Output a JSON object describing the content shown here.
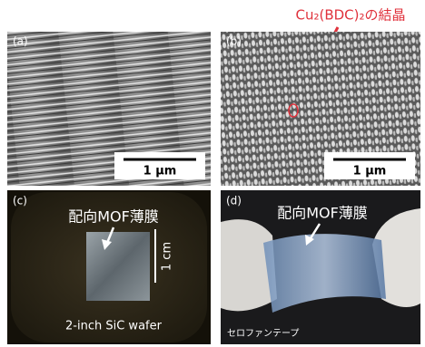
{
  "header": {
    "title": "Cu₂(BDC)₂の結晶"
  },
  "panels": [
    {
      "label": "(a)",
      "scale_bar": "1 μm"
    },
    {
      "label": "(b)",
      "scale_bar": "1 μm"
    },
    {
      "label": "(c)",
      "title": "配向MOF薄膜",
      "scale_bar": "1 cm",
      "caption": "2-inch SiC wafer"
    },
    {
      "label": "(d)",
      "title": "配向MOF薄膜",
      "caption": "セロファンテープ"
    }
  ]
}
